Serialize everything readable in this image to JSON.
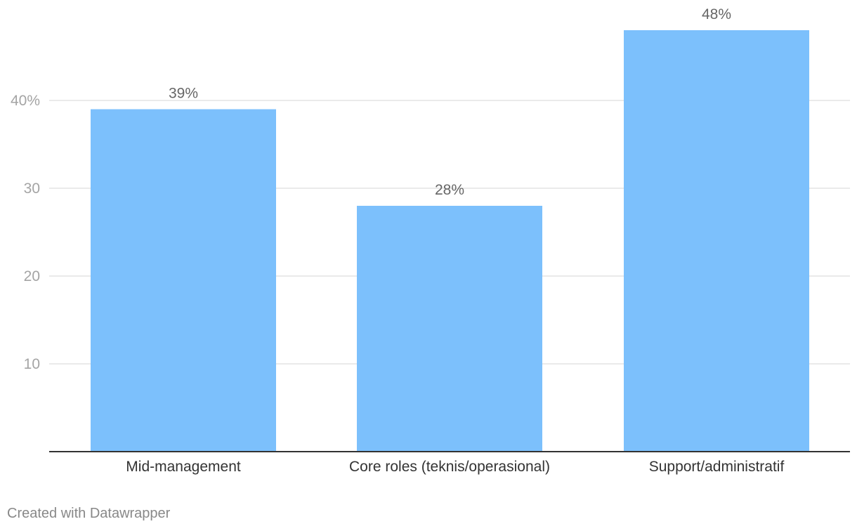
{
  "chart_data": {
    "type": "bar",
    "categories": [
      "Mid-management",
      "Core roles (teknis/operasional)",
      "Support/administratif"
    ],
    "values": [
      39,
      28,
      48
    ],
    "value_labels": [
      "39%",
      "28%",
      "48%"
    ],
    "ylim": [
      0,
      50
    ],
    "y_ticks": [
      10,
      20,
      30,
      40
    ],
    "y_tick_labels": [
      "10",
      "20",
      "30",
      "40%"
    ],
    "grid": true,
    "bar_color": "#7cc0fc",
    "gridline_color": "#e3e3e3",
    "baseline_color": "#333333"
  },
  "footer": {
    "credit": "Created with Datawrapper"
  }
}
